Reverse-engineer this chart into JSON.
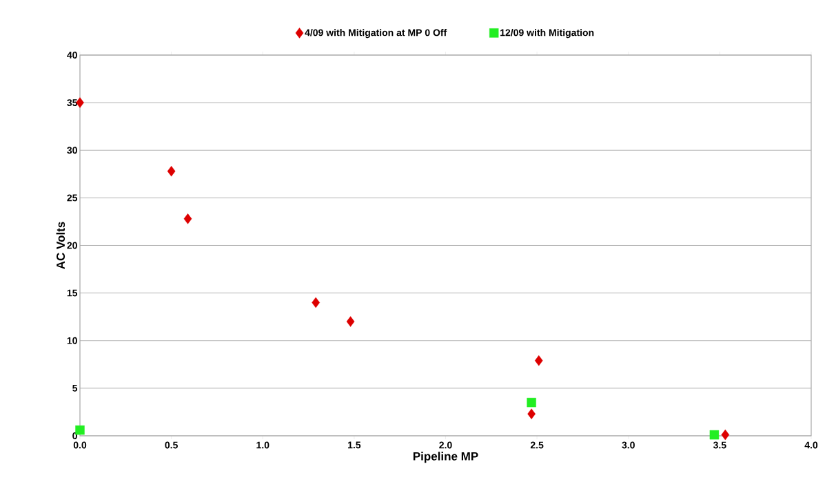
{
  "chart_data": {
    "type": "scatter",
    "xlabel": "Pipeline MP",
    "ylabel": "AC Volts",
    "series": [
      {
        "name": "4/09 with Mitigation at MP 0 Off",
        "color": "#dd0000",
        "marker": "diamond",
        "x": [
          0,
          0.5,
          0.59,
          1.29,
          1.48,
          2.51,
          2.47,
          3.53
        ],
        "values": [
          35,
          27.8,
          22.8,
          14,
          12,
          7.9,
          2.3,
          0.1
        ]
      },
      {
        "name": "12/09 with Mitigation",
        "color": "#22ee22",
        "marker": "square",
        "x": [
          0,
          2.47,
          3.47
        ],
        "values": [
          0.6,
          3.5,
          0.1
        ]
      }
    ],
    "xlim": [
      0,
      4
    ],
    "xticks": [
      {
        "value": 0,
        "label": "0.0"
      },
      0.5,
      {
        "value": 1,
        "label": "1.0"
      },
      1.5,
      {
        "value": 2,
        "label": "2.0"
      },
      2.5,
      {
        "value": 3,
        "label": "3.0"
      },
      3.5,
      {
        "value": 4,
        "label": "4.0"
      }
    ],
    "ylim": [
      0,
      40
    ],
    "yticks": [
      0,
      5,
      10,
      15,
      20,
      25,
      30,
      35,
      40
    ],
    "grid": "y",
    "legend": "top"
  }
}
